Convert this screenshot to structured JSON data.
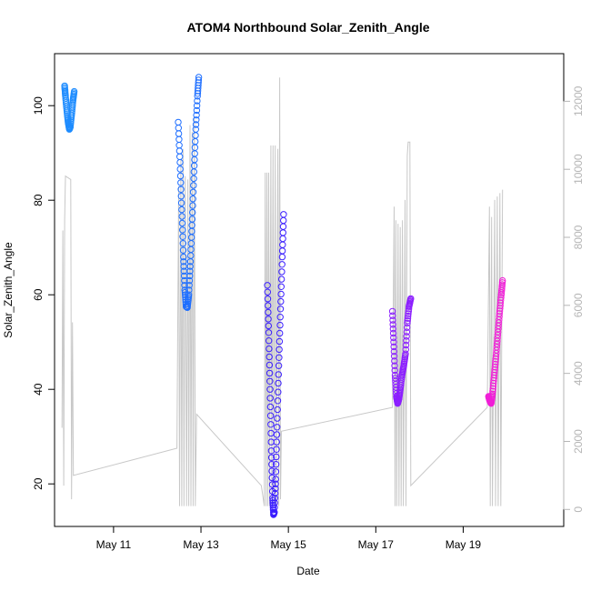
{
  "chart_data": {
    "type": "scatter",
    "title": "ATOM4 Northbound Solar_Zenith_Angle",
    "xlabel": "Date",
    "ylabel": "Solar_Zenith_Angle",
    "x_unit": "days (May 2024 day-of-month, fractional)",
    "xlim": [
      9.65,
      21.3
    ],
    "ylim": [
      11,
      111
    ],
    "y2lim": [
      -500,
      13400
    ],
    "x_ticks": [
      {
        "value": 11,
        "label": "May 11"
      },
      {
        "value": 13,
        "label": "May 13"
      },
      {
        "value": 15,
        "label": "May 15"
      },
      {
        "value": 17,
        "label": "May 17"
      },
      {
        "value": 19,
        "label": "May 19"
      }
    ],
    "y_ticks": [
      20,
      40,
      60,
      80,
      100
    ],
    "y2_ticks": [
      0,
      2000,
      4000,
      6000,
      8000,
      10000,
      12000
    ],
    "grid": false,
    "legend": "none",
    "colors": {
      "secondary_line": "#c8c8c8",
      "axis": "#000000",
      "right_axis": "#b5b5b5"
    },
    "series": [
      {
        "color": "#1e8cff",
        "points": [
          [
            9.88,
            104.2
          ],
          [
            9.9,
            102
          ],
          [
            9.93,
            99
          ],
          [
            9.96,
            96.5
          ],
          [
            9.99,
            95
          ],
          [
            10.01,
            95.5
          ],
          [
            10.04,
            98
          ],
          [
            10.07,
            101
          ],
          [
            10.1,
            103
          ]
        ]
      },
      {
        "color": "#1f6fff",
        "points": [
          [
            12.48,
            96.5
          ],
          [
            12.52,
            88
          ],
          [
            12.56,
            78
          ],
          [
            12.6,
            68
          ],
          [
            12.63,
            61
          ],
          [
            12.66,
            57.5
          ],
          [
            12.69,
            57.3
          ],
          [
            12.72,
            60
          ],
          [
            12.76,
            67
          ],
          [
            12.8,
            76
          ],
          [
            12.84,
            86
          ],
          [
            12.88,
            95
          ],
          [
            12.92,
            102
          ],
          [
            12.95,
            106
          ]
        ]
      },
      {
        "color": "#3b1fff",
        "points": [
          [
            14.52,
            62
          ],
          [
            14.55,
            52
          ],
          [
            14.58,
            40
          ],
          [
            14.61,
            27
          ],
          [
            14.64,
            17
          ],
          [
            14.66,
            13.5
          ],
          [
            14.68,
            14
          ],
          [
            14.71,
            21
          ],
          [
            14.74,
            32
          ],
          [
            14.78,
            45
          ],
          [
            14.82,
            57
          ],
          [
            14.86,
            68
          ],
          [
            14.89,
            77
          ]
        ]
      },
      {
        "color": "#8c1fff",
        "points": [
          [
            17.38,
            56.5
          ],
          [
            17.41,
            50
          ],
          [
            17.44,
            43
          ],
          [
            17.47,
            38.5
          ],
          [
            17.5,
            37
          ],
          [
            17.53,
            38
          ],
          [
            17.56,
            40
          ],
          [
            17.6,
            43
          ],
          [
            17.64,
            45
          ],
          [
            17.68,
            47.5
          ],
          [
            17.72,
            54
          ],
          [
            17.76,
            57.5
          ],
          [
            17.8,
            59.2
          ]
        ]
      },
      {
        "color": "#f01fd7",
        "points": [
          [
            19.58,
            38.5
          ],
          [
            19.61,
            37.5
          ],
          [
            19.64,
            37
          ],
          [
            19.67,
            39
          ],
          [
            19.71,
            43
          ],
          [
            19.75,
            47
          ],
          [
            19.79,
            51.5
          ],
          [
            19.83,
            56
          ],
          [
            19.87,
            60
          ],
          [
            19.9,
            63
          ]
        ]
      }
    ],
    "secondary_series": {
      "axis": "right",
      "color": "#c8c8c8",
      "points": [
        [
          9.82,
          2400
        ],
        [
          9.84,
          8200
        ],
        [
          9.86,
          700
        ],
        [
          9.88,
          8500
        ],
        [
          9.9,
          9800
        ],
        [
          10.02,
          9700
        ],
        [
          10.04,
          300
        ],
        [
          10.06,
          5500
        ],
        [
          10.08,
          1000
        ],
        [
          12.45,
          1800
        ],
        [
          12.49,
          9500
        ],
        [
          12.51,
          100
        ],
        [
          12.54,
          10300
        ],
        [
          12.56,
          100
        ],
        [
          12.59,
          10600
        ],
        [
          12.61,
          100
        ],
        [
          12.64,
          9800
        ],
        [
          12.67,
          100
        ],
        [
          12.7,
          9700
        ],
        [
          12.72,
          100
        ],
        [
          12.75,
          11300
        ],
        [
          12.77,
          100
        ],
        [
          12.8,
          11100
        ],
        [
          12.82,
          100
        ],
        [
          12.85,
          11500
        ],
        [
          12.87,
          100
        ],
        [
          12.9,
          2800
        ],
        [
          14.38,
          700
        ],
        [
          14.45,
          100
        ],
        [
          14.47,
          9900
        ],
        [
          14.49,
          100
        ],
        [
          14.51,
          9900
        ],
        [
          14.53,
          100
        ],
        [
          14.55,
          9900
        ],
        [
          14.57,
          100
        ],
        [
          14.6,
          10700
        ],
        [
          14.62,
          100
        ],
        [
          14.65,
          10700
        ],
        [
          14.67,
          100
        ],
        [
          14.7,
          10700
        ],
        [
          14.72,
          100
        ],
        [
          14.76,
          10600
        ],
        [
          14.78,
          100
        ],
        [
          14.8,
          12700
        ],
        [
          14.82,
          300
        ],
        [
          14.84,
          2300
        ],
        [
          17.38,
          3000
        ],
        [
          17.42,
          8900
        ],
        [
          17.44,
          100
        ],
        [
          17.46,
          8500
        ],
        [
          17.48,
          100
        ],
        [
          17.51,
          8400
        ],
        [
          17.53,
          100
        ],
        [
          17.56,
          8300
        ],
        [
          17.58,
          100
        ],
        [
          17.61,
          8500
        ],
        [
          17.63,
          100
        ],
        [
          17.67,
          9100
        ],
        [
          17.69,
          100
        ],
        [
          17.72,
          10400
        ],
        [
          17.74,
          10800
        ],
        [
          17.78,
          10800
        ],
        [
          17.8,
          700
        ],
        [
          19.55,
          3000
        ],
        [
          19.6,
          8900
        ],
        [
          19.62,
          100
        ],
        [
          19.65,
          8600
        ],
        [
          19.67,
          100
        ],
        [
          19.72,
          9100
        ],
        [
          19.74,
          100
        ],
        [
          19.78,
          9200
        ],
        [
          19.8,
          100
        ],
        [
          19.84,
          9300
        ],
        [
          19.86,
          100
        ],
        [
          19.9,
          9400
        ]
      ]
    }
  }
}
